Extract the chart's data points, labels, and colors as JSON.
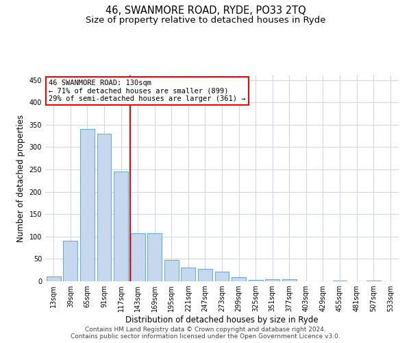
{
  "title": "46, SWANMORE ROAD, RYDE, PO33 2TQ",
  "subtitle": "Size of property relative to detached houses in Ryde",
  "xlabel": "Distribution of detached houses by size in Ryde",
  "ylabel": "Number of detached properties",
  "footer_line1": "Contains HM Land Registry data © Crown copyright and database right 2024.",
  "footer_line2": "Contains public sector information licensed under the Open Government Licence v3.0.",
  "bin_labels": [
    "13sqm",
    "39sqm",
    "65sqm",
    "91sqm",
    "117sqm",
    "143sqm",
    "169sqm",
    "195sqm",
    "221sqm",
    "247sqm",
    "273sqm",
    "299sqm",
    "325sqm",
    "351sqm",
    "377sqm",
    "403sqm",
    "429sqm",
    "455sqm",
    "481sqm",
    "507sqm",
    "533sqm"
  ],
  "bar_values": [
    10,
    90,
    340,
    330,
    245,
    108,
    108,
    47,
    30,
    27,
    22,
    9,
    3,
    5,
    4,
    0,
    0,
    2,
    0,
    1,
    0
  ],
  "bar_color": "#c5d8ed",
  "bar_edge_color": "#6aaed6",
  "grid_color": "#d0d8e8",
  "annotation_line1": "46 SWANMORE ROAD: 130sqm",
  "annotation_line2": "← 71% of detached houses are smaller (899)",
  "annotation_line3": "29% of semi-detached houses are larger (361) →",
  "annotation_box_color": "white",
  "annotation_box_edge_color": "red",
  "vline_x": 4.55,
  "vline_color": "red",
  "ylim": [
    0,
    460
  ],
  "yticks": [
    0,
    50,
    100,
    150,
    200,
    250,
    300,
    350,
    400,
    450
  ],
  "title_fontsize": 10.5,
  "subtitle_fontsize": 9.5,
  "tick_fontsize": 7,
  "label_fontsize": 8.5,
  "footer_fontsize": 6.5,
  "annot_fontsize": 7.5
}
